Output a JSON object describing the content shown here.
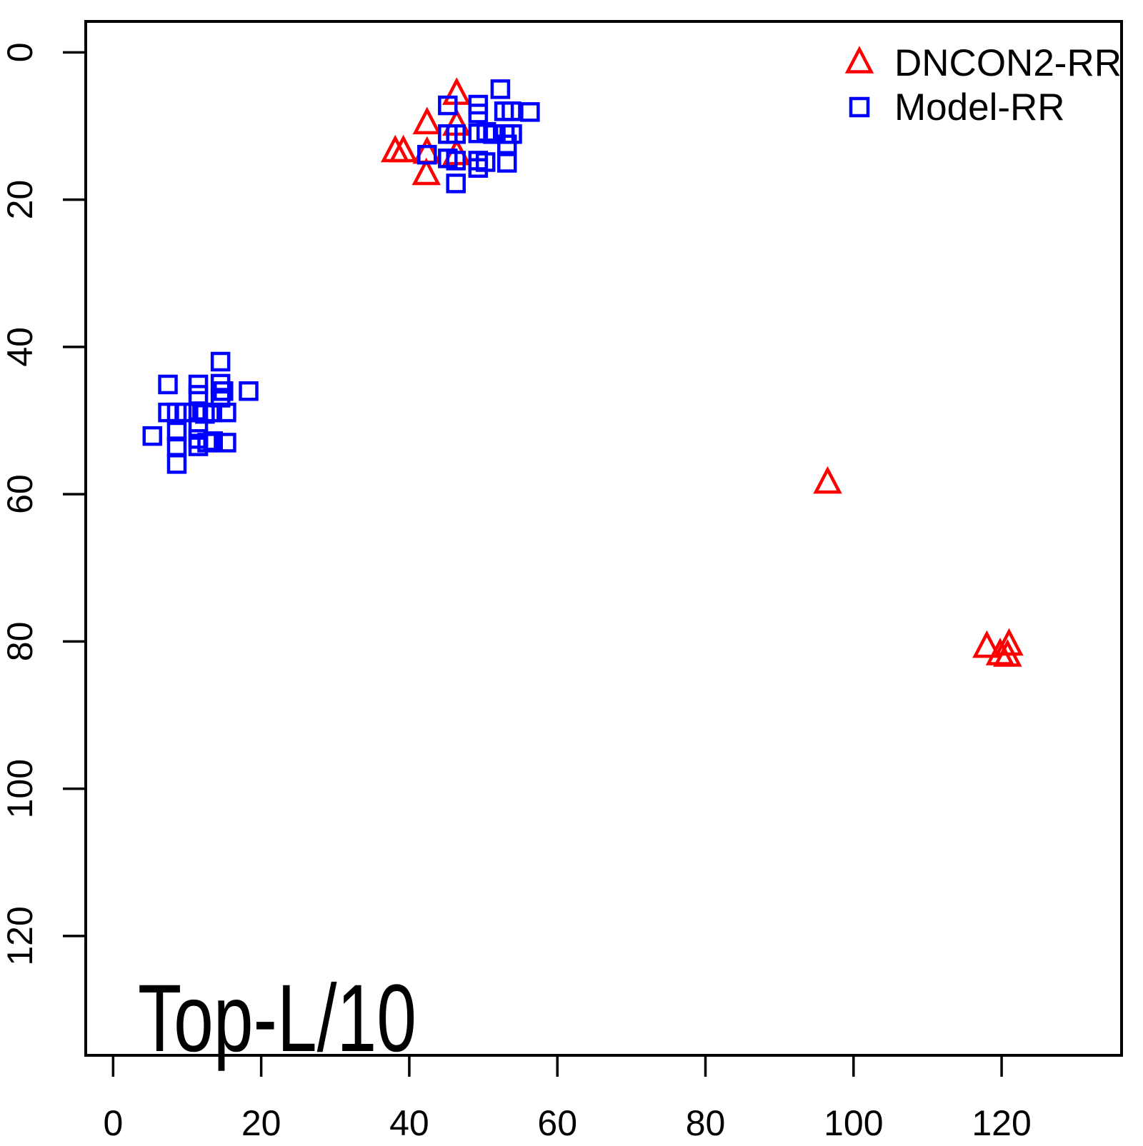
{
  "figure": {
    "annotation": "Top-L/10",
    "background": "#ffffff",
    "axis_color": "#000000"
  },
  "chart_data": {
    "type": "scatter",
    "title": "",
    "xlabel": "",
    "ylabel": "",
    "annotation": "Top-L/10",
    "grid": false,
    "legend_position": "top-right",
    "x_axis": {
      "ticks": [
        0,
        20,
        40,
        60,
        80,
        100,
        120
      ],
      "range": [
        -3.7,
        136.2
      ]
    },
    "y_axis": {
      "ticks": [
        0,
        20,
        40,
        60,
        80,
        100,
        120
      ],
      "range": [
        -4.2,
        136.2
      ],
      "inverted": true
    },
    "series": [
      {
        "name": "DNCON2-RR",
        "marker": "triangle",
        "color": "#FF0000",
        "points": [
          [
            46.4,
            5.7
          ],
          [
            42.4,
            9.7
          ],
          [
            46.4,
            9.9
          ],
          [
            38.1,
            13.5
          ],
          [
            39.2,
            13.5
          ],
          [
            42.4,
            13.7
          ],
          [
            46.4,
            13.9
          ],
          [
            42.3,
            16.6
          ],
          [
            96.5,
            58.5
          ],
          [
            118.0,
            80.8
          ],
          [
            121.0,
            80.5
          ],
          [
            119.8,
            81.8
          ],
          [
            120.8,
            82.0
          ]
        ]
      },
      {
        "name": "Model-RR",
        "marker": "square",
        "color": "#0000FF",
        "points": [
          [
            52.3,
            5.0
          ],
          [
            45.2,
            7.2
          ],
          [
            49.3,
            7.1
          ],
          [
            49.3,
            8.3
          ],
          [
            52.8,
            8.0
          ],
          [
            53.8,
            8.0
          ],
          [
            56.3,
            8.1
          ],
          [
            45.2,
            11.1
          ],
          [
            46.3,
            11.1
          ],
          [
            49.3,
            11.0
          ],
          [
            50.4,
            10.8
          ],
          [
            51.3,
            11.1
          ],
          [
            52.9,
            11.1
          ],
          [
            53.9,
            11.1
          ],
          [
            53.2,
            12.5
          ],
          [
            42.4,
            13.9
          ],
          [
            45.2,
            14.4
          ],
          [
            46.3,
            14.7
          ],
          [
            49.3,
            14.7
          ],
          [
            50.3,
            14.9
          ],
          [
            53.2,
            15.0
          ],
          [
            49.3,
            15.7
          ],
          [
            46.3,
            17.8
          ],
          [
            14.5,
            42.0
          ],
          [
            7.4,
            45.1
          ],
          [
            11.5,
            45.1
          ],
          [
            14.5,
            45.0
          ],
          [
            14.9,
            46.0
          ],
          [
            18.3,
            46.0
          ],
          [
            11.5,
            46.5
          ],
          [
            14.5,
            46.9
          ],
          [
            7.4,
            48.9
          ],
          [
            8.6,
            48.9
          ],
          [
            9.8,
            48.9
          ],
          [
            11.5,
            48.9
          ],
          [
            12.4,
            49.1
          ],
          [
            13.4,
            48.9
          ],
          [
            15.3,
            48.9
          ],
          [
            5.3,
            52.1
          ],
          [
            8.6,
            51.5
          ],
          [
            11.5,
            50.9
          ],
          [
            11.5,
            52.5
          ],
          [
            11.5,
            53.5
          ],
          [
            12.7,
            53.0
          ],
          [
            13.5,
            52.8
          ],
          [
            15.3,
            53.0
          ],
          [
            8.6,
            53.5
          ],
          [
            8.6,
            55.9
          ]
        ]
      }
    ]
  }
}
